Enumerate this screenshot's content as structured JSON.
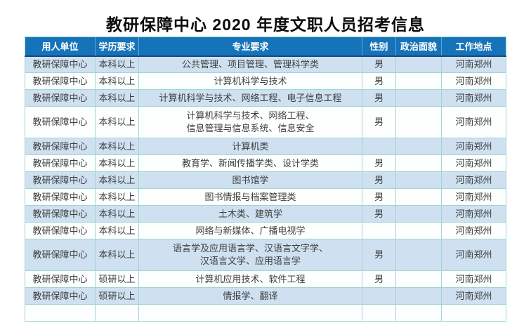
{
  "title": "教研保障中心 2020 年度文职人员招考信息",
  "table": {
    "columns": [
      "用人单位",
      "学历要求",
      "专业要求",
      "性别",
      "政治面貌",
      "工作地点"
    ],
    "rows": [
      {
        "unit": "教研保障中心",
        "education": "本科以上",
        "major": "公共管理、项目管理、管理科学类",
        "gender": "男",
        "political": "",
        "location": "河南郑州"
      },
      {
        "unit": "教研保障中心",
        "education": "本科以上",
        "major": "计算机科学与技术",
        "gender": "男",
        "political": "",
        "location": "河南郑州"
      },
      {
        "unit": "教研保障中心",
        "education": "本科以上",
        "major": "计算机科学与技术、网络工程、电子信息工程",
        "gender": "男",
        "political": "",
        "location": "河南郑州"
      },
      {
        "unit": "教研保障中心",
        "education": "本科以上",
        "major": "计算机科学与技术、网络工程、\n信息管理与信息系统、信息安全",
        "gender": "男",
        "political": "",
        "location": "河南郑州"
      },
      {
        "unit": "教研保障中心",
        "education": "本科以上",
        "major": "计算机类",
        "gender": "",
        "political": "",
        "location": "河南郑州"
      },
      {
        "unit": "教研保障中心",
        "education": "本科以上",
        "major": "教育学、新闻传播学类、设计学类",
        "gender": "男",
        "political": "",
        "location": "河南郑州"
      },
      {
        "unit": "教研保障中心",
        "education": "本科以上",
        "major": "图书馆学",
        "gender": "男",
        "political": "",
        "location": "河南郑州"
      },
      {
        "unit": "教研保障中心",
        "education": "本科以上",
        "major": "图书情报与档案管理类",
        "gender": "男",
        "political": "",
        "location": "河南郑州"
      },
      {
        "unit": "教研保障中心",
        "education": "本科以上",
        "major": "土木类、建筑学",
        "gender": "男",
        "political": "",
        "location": "河南郑州"
      },
      {
        "unit": "教研保障中心",
        "education": "本科以上",
        "major": "网络与新媒体、广播电视学",
        "gender": "",
        "political": "",
        "location": "河南郑州"
      },
      {
        "unit": "教研保障中心",
        "education": "本科以上",
        "major": "语言学及应用语言学、汉语言文字学、\n汉语言文学、应用语言学",
        "gender": "男",
        "political": "",
        "location": "河南郑州"
      },
      {
        "unit": "教研保障中心",
        "education": "硕研以上",
        "major": "计算机应用技术、软件工程",
        "gender": "男",
        "political": "",
        "location": "河南郑州"
      },
      {
        "unit": "教研保障中心",
        "education": "硕研以上",
        "major": "情报学、翻译",
        "gender": "",
        "political": "",
        "location": "河南郑州"
      }
    ]
  },
  "colors": {
    "header_bg": "#1573b9",
    "header_text": "#ffffff",
    "header_bottom_border": "#17477e",
    "row_alt_bg": "#cfe1f1",
    "row_bg": "#fdfefe",
    "border": "#9ed6d3",
    "cell_text": "#3e3e3e",
    "title_text": "#0b0b0b"
  }
}
